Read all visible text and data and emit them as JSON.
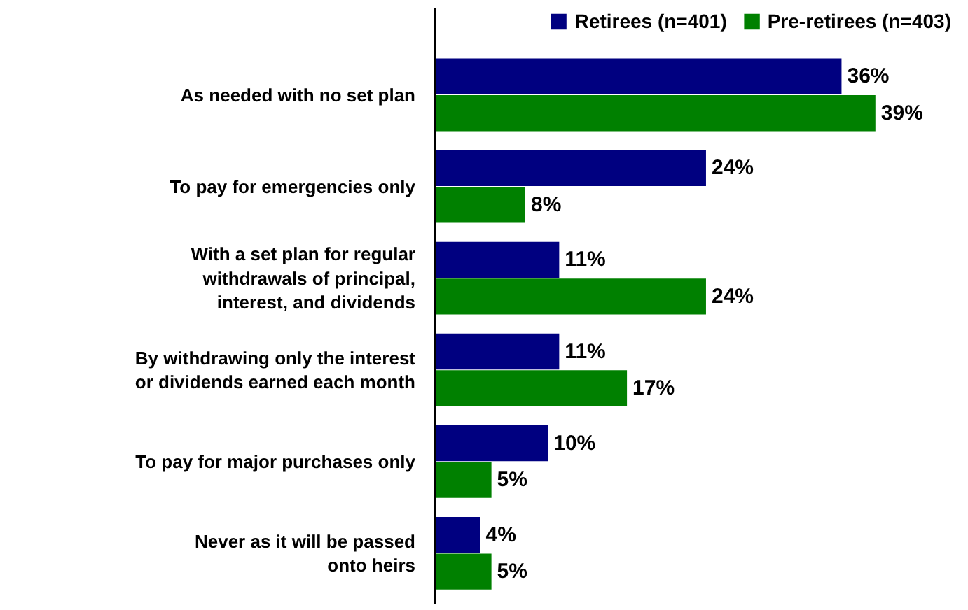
{
  "chart_data": {
    "type": "bar",
    "orientation": "horizontal",
    "legend": "top right",
    "categories": [
      "As needed with no set plan",
      "To pay for emergencies only",
      "With a set plan for regular\nwithdrawals of principal,\ninterest, and dividends",
      "By withdrawing only the interest\nor dividends earned each month",
      "To pay for major purchases only",
      "Never as it will be passed\nonto heirs"
    ],
    "series": [
      {
        "name": "Retirees (n=401)",
        "color": "#000080",
        "values": [
          36,
          24,
          11,
          11,
          10,
          4
        ],
        "value_labels": [
          "36%",
          "24%",
          "11%",
          "11%",
          "10%",
          "4%"
        ]
      },
      {
        "name": "Pre-retirees (n=403)",
        "color": "#008000",
        "values": [
          39,
          8,
          24,
          17,
          5,
          5
        ],
        "value_labels": [
          "39%",
          "8%",
          "24%",
          "17%",
          "5%",
          "5%"
        ]
      }
    ]
  }
}
